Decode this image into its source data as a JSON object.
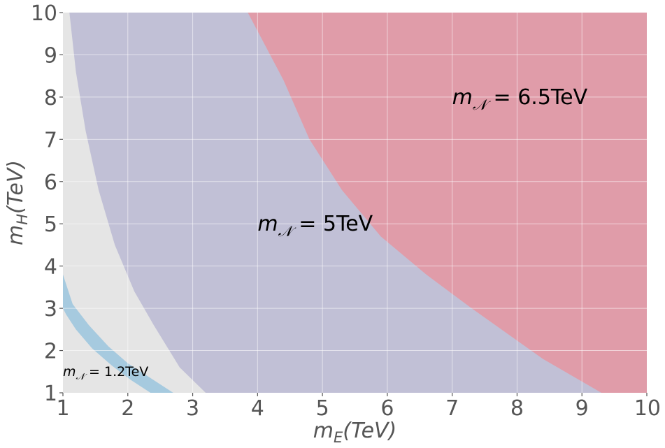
{
  "chart_data": {
    "type": "area",
    "xlabel": "m_E(TeV)",
    "ylabel": "m_H(TeV)",
    "xlim": [
      1,
      10
    ],
    "ylim": [
      1,
      10
    ],
    "xticks": [
      "1",
      "2",
      "3",
      "4",
      "5",
      "6",
      "7",
      "8",
      "9",
      "10"
    ],
    "yticks": [
      "1",
      "2",
      "3",
      "4",
      "5",
      "6",
      "7",
      "8",
      "9",
      "10"
    ],
    "grid": true,
    "colors": {
      "background": "#e5e5e5",
      "band_1_2": "#a6cadf",
      "region_5": "#c1c0d6",
      "region_6_5": "#e09ca9"
    },
    "regions": [
      {
        "boundary": [
          [
            3.2,
            1.0
          ],
          [
            2.8,
            1.6
          ],
          [
            2.4,
            2.6
          ],
          [
            2.1,
            3.4
          ],
          [
            1.8,
            4.5
          ],
          [
            1.55,
            5.8
          ],
          [
            1.35,
            7.2
          ],
          [
            1.2,
            8.6
          ],
          [
            1.1,
            10.0
          ]
        ]
      },
      {
        "boundary": [
          [
            9.3,
            1.0
          ],
          [
            8.4,
            1.8
          ],
          [
            7.3,
            3.0
          ],
          [
            6.6,
            3.8
          ],
          [
            5.9,
            4.7
          ],
          [
            5.3,
            5.8
          ],
          [
            4.8,
            7.0
          ],
          [
            4.4,
            8.4
          ],
          [
            3.85,
            10.0
          ]
        ]
      }
    ],
    "band": {
      "outer": [
        [
          1.0,
          3.8
        ],
        [
          1.15,
          3.1
        ],
        [
          1.4,
          2.6
        ],
        [
          1.7,
          2.1
        ],
        [
          2.0,
          1.7
        ],
        [
          2.35,
          1.35
        ],
        [
          2.7,
          1.0
        ]
      ],
      "inner": [
        [
          2.35,
          1.0
        ],
        [
          2.05,
          1.3
        ],
        [
          1.75,
          1.65
        ],
        [
          1.45,
          2.05
        ],
        [
          1.2,
          2.5
        ],
        [
          1.05,
          2.85
        ],
        [
          1.0,
          3.0
        ]
      ]
    },
    "annotations": [
      {
        "text_base": "m",
        "text_sub": "𝒩",
        "text_rest": " = 6.5TeV",
        "x": 7.0,
        "y": 8.0,
        "size": "large"
      },
      {
        "text_base": "m",
        "text_sub": "𝒩",
        "text_rest": " = 5TeV",
        "x": 4.0,
        "y": 5.0,
        "size": "large"
      },
      {
        "text_base": "m",
        "text_sub": "𝒩",
        "text_rest": " = 1.2TeV",
        "x": 1.0,
        "y": 1.5,
        "size": "small"
      }
    ]
  }
}
